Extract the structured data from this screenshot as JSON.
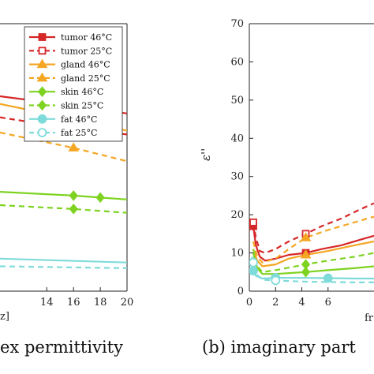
{
  "chart_data": [
    {
      "type": "line",
      "caption": "ex permittivity",
      "xlabel": "z]",
      "ylabel": "",
      "xlim": [
        10.5,
        20
      ],
      "ylim": [
        0,
        70
      ],
      "x_ticks": [
        "14",
        "16",
        "18",
        "20"
      ],
      "y_ticks": [],
      "grid": false,
      "legend": {
        "placement": "top-right",
        "entries": [
          {
            "label": "tumor 46°C",
            "color": "#d62728",
            "dash": "solid",
            "marker": "square"
          },
          {
            "label": "tumor 25°C",
            "color": "#d62728",
            "dash": "dashed",
            "marker": "square"
          },
          {
            "label": "gland 46°C",
            "color": "#f5a623",
            "dash": "solid",
            "marker": "triangle"
          },
          {
            "label": "gland 25°C",
            "color": "#f5a623",
            "dash": "dashed",
            "marker": "triangle"
          },
          {
            "label": "skin 46°C",
            "color": "#7ed321",
            "dash": "solid",
            "marker": "diamond"
          },
          {
            "label": "skin 25°C",
            "color": "#7ed321",
            "dash": "dashed",
            "marker": "diamond"
          },
          {
            "label": "fat 46°C",
            "color": "#7fdbda",
            "dash": "solid",
            "marker": "circle"
          },
          {
            "label": "fat 25°C",
            "color": "#7fdbda",
            "dash": "dashed",
            "marker": "circle"
          }
        ]
      },
      "series": [
        {
          "name": "tumor 46°C",
          "x": [
            10.5,
            16,
            20
          ],
          "y": [
            51,
            48.5,
            46.5
          ],
          "markers_at": [
            16
          ]
        },
        {
          "name": "tumor 25°C",
          "x": [
            10.5,
            16,
            20
          ],
          "y": [
            45.5,
            42.5,
            41
          ],
          "markers_at": [
            16
          ]
        },
        {
          "name": "gland 46°C",
          "x": [
            10.5,
            16,
            20
          ],
          "y": [
            49,
            45,
            42
          ],
          "markers_at": [
            16
          ]
        },
        {
          "name": "gland 25°C",
          "x": [
            10.5,
            16,
            20
          ],
          "y": [
            41.5,
            37.5,
            34
          ],
          "markers_at": [
            16
          ]
        },
        {
          "name": "skin 46°C",
          "x": [
            10.5,
            16,
            20
          ],
          "y": [
            26,
            25,
            24
          ],
          "markers_at": [
            16,
            18
          ]
        },
        {
          "name": "skin 25°C",
          "x": [
            10.5,
            16,
            20
          ],
          "y": [
            22.5,
            21.5,
            20.5
          ],
          "markers_at": [
            16
          ]
        },
        {
          "name": "fat 46°C",
          "x": [
            10.5,
            20
          ],
          "y": [
            8.5,
            7.5
          ],
          "markers_at": []
        },
        {
          "name": "fat 25°C",
          "x": [
            10.5,
            20
          ],
          "y": [
            6.5,
            6
          ],
          "markers_at": []
        }
      ]
    },
    {
      "type": "line",
      "caption": "(b) imaginary part",
      "xlabel": "fr",
      "ylabel": "ε''",
      "xlim": [
        0,
        9.5
      ],
      "ylim": [
        0,
        70
      ],
      "x_ticks": [
        "0",
        "2",
        "4",
        "6"
      ],
      "y_ticks": [
        "0",
        "10",
        "20",
        "30",
        "40",
        "50",
        "60",
        "70"
      ],
      "grid": false,
      "series": [
        {
          "name": "tumor 46°C",
          "x": [
            0.3,
            0.5,
            0.8,
            1.2,
            2,
            3,
            4.3,
            5.5,
            7,
            8.5,
            9.5
          ],
          "y": [
            17,
            12,
            9,
            8,
            8.5,
            9.5,
            10,
            11,
            12,
            13.5,
            14.5
          ],
          "markers_at": [
            0.3,
            4.3
          ]
        },
        {
          "name": "tumor 25°C",
          "x": [
            0.3,
            0.5,
            0.8,
            1.2,
            2,
            3,
            4.3,
            5.5,
            7,
            8.5,
            9.5
          ],
          "y": [
            18,
            14,
            10.5,
            10,
            11,
            13,
            15,
            17,
            19,
            21.5,
            23
          ],
          "markers_at": [
            0.3,
            4.3
          ]
        },
        {
          "name": "gland 46°C",
          "x": [
            0.3,
            0.6,
            1,
            2,
            3,
            4.3,
            6,
            8,
            9.5
          ],
          "y": [
            11,
            8,
            6.5,
            7,
            8.5,
            9.5,
            10.5,
            12,
            13
          ],
          "markers_at": [
            4.3
          ]
        },
        {
          "name": "gland 25°C",
          "x": [
            0.3,
            0.6,
            1,
            2,
            3,
            4.3,
            6,
            8,
            9.5
          ],
          "y": [
            13,
            9,
            7.5,
            8.5,
            11,
            14,
            16,
            18,
            19.5
          ],
          "markers_at": [
            4.3
          ]
        },
        {
          "name": "skin 46°C",
          "x": [
            0.3,
            0.6,
            1,
            2,
            4.3,
            6,
            8,
            9.5
          ],
          "y": [
            10,
            6,
            4.5,
            4.5,
            5,
            5.5,
            6,
            6.5
          ],
          "markers_at": [
            4.3
          ]
        },
        {
          "name": "skin 25°C",
          "x": [
            0.3,
            0.6,
            1,
            2,
            4.3,
            6,
            8,
            9.5
          ],
          "y": [
            11,
            6.5,
            5,
            5.5,
            7,
            8,
            9,
            10
          ],
          "markers_at": [
            4.3
          ]
        },
        {
          "name": "fat 46°C",
          "x": [
            0.2,
            0.5,
            1,
            2,
            4,
            6,
            8,
            9.5
          ],
          "y": [
            6,
            4,
            3.3,
            3.5,
            3.5,
            3.4,
            3.3,
            3.3
          ],
          "markers_at": [
            0.3,
            2,
            6
          ]
        },
        {
          "name": "fat 25°C",
          "x": [
            0.2,
            0.5,
            1,
            2,
            4,
            6,
            8,
            9.5
          ],
          "y": [
            9,
            4.5,
            3,
            2.8,
            2.5,
            2.4,
            2.3,
            2.3
          ],
          "markers_at": [
            0.3,
            2
          ]
        }
      ]
    }
  ]
}
